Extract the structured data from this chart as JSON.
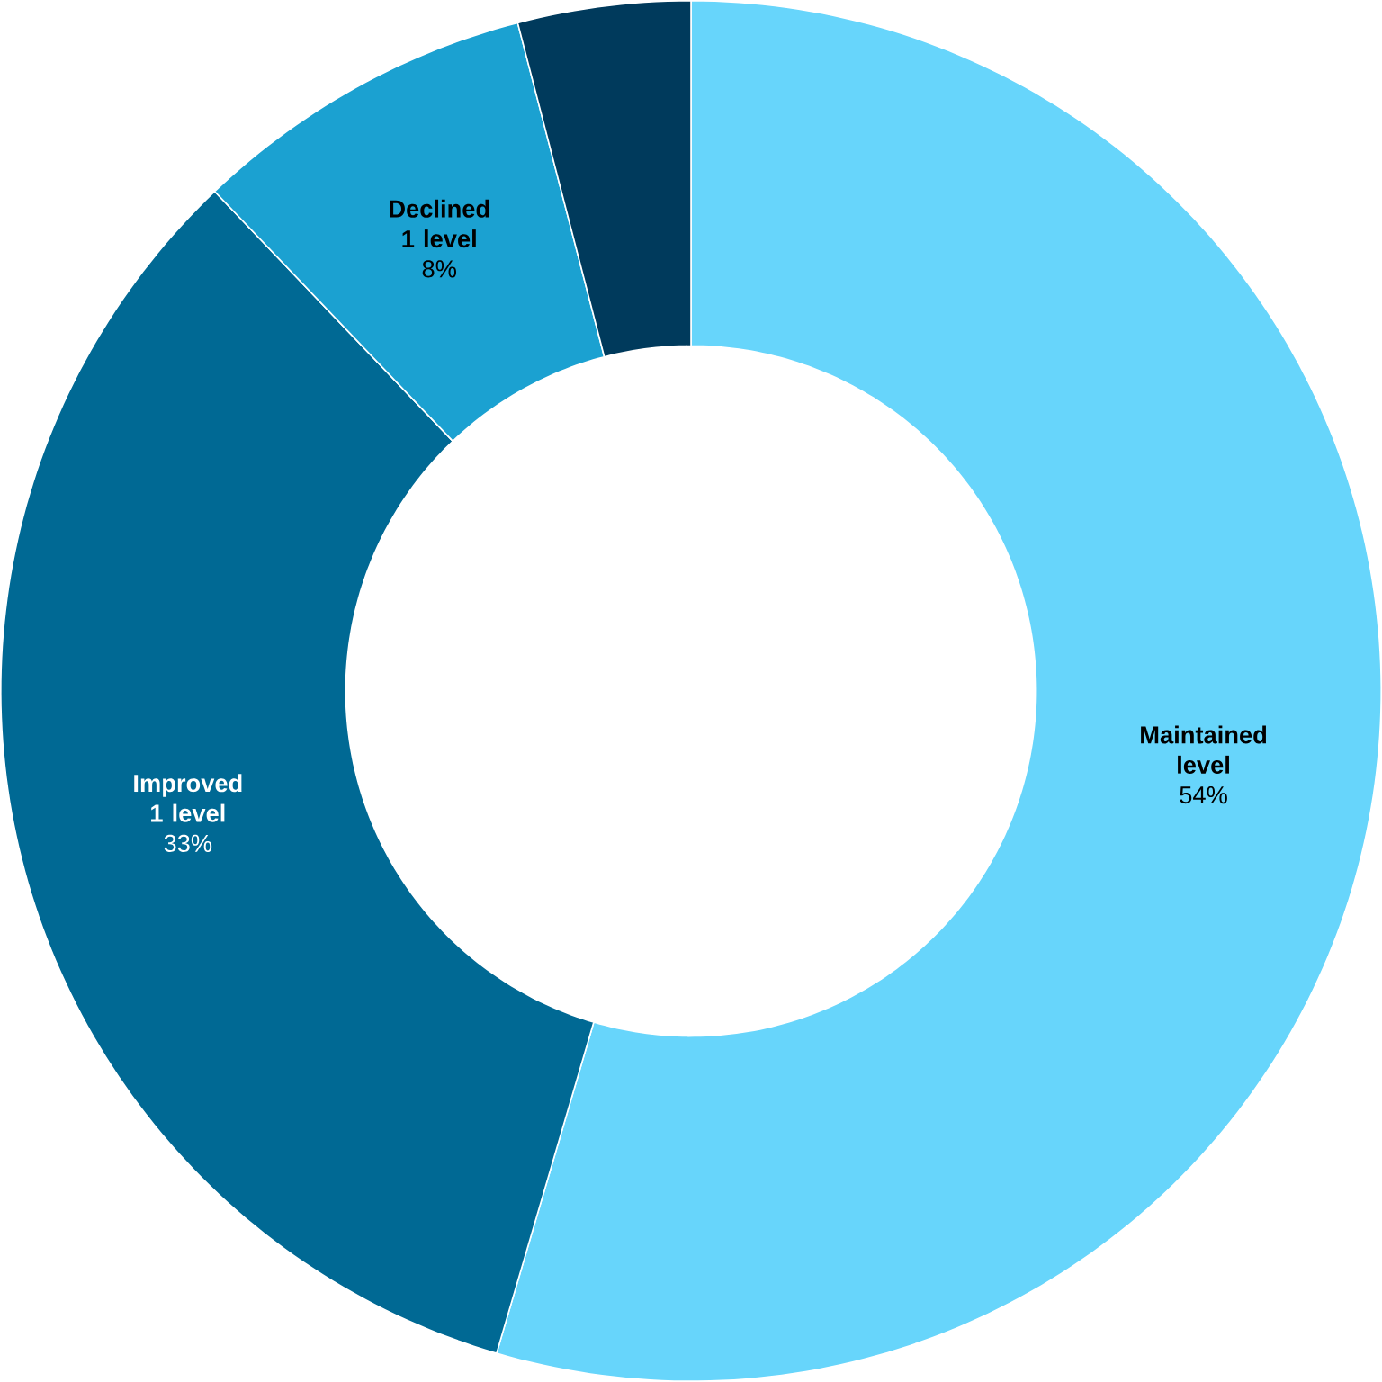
{
  "chart_data": {
    "type": "donut",
    "categories": [
      "Maintained level",
      "Improved 1 level",
      "Declined 1 level",
      null
    ],
    "values": [
      54,
      33,
      8,
      4
    ],
    "colors": [
      "#67d5fb",
      "#006994",
      "#1ba1d1",
      "#003a5c"
    ],
    "value_labels": [
      "54%",
      "33%",
      "8%",
      null
    ]
  }
}
